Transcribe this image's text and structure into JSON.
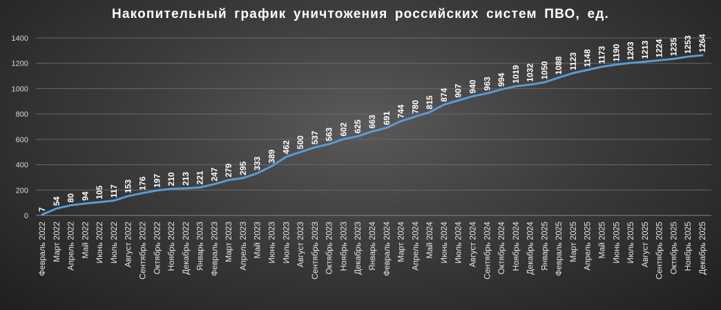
{
  "chart_data": {
    "type": "line",
    "title": "Накопительный график уничтожения российских систем ПВО, ед.",
    "xlabel": "",
    "ylabel": "",
    "ylim": [
      0,
      1400
    ],
    "yticks": [
      "0",
      "200",
      "400",
      "600",
      "800",
      "1000",
      "1200",
      "1400"
    ],
    "grid": true,
    "legend": "none",
    "line_color": "#5b9bd5",
    "categories": [
      "Февраль 2022",
      "Март 2022",
      "Апрель 2022",
      "Май 2022",
      "Июнь 2022",
      "Июль 2022",
      "Август 2022",
      "Сентябрь 2022",
      "Октябрь 2022",
      "Ноябрь 2022",
      "Декабрь 2022",
      "Январь 2023",
      "Февраль 2023",
      "Март 2023",
      "Апрель 2023",
      "Май 2023",
      "Июнь 2023",
      "Июль 2023",
      "Август 2023",
      "Сентябрь 2023",
      "Октябрь 2023",
      "Ноябрь 2023",
      "Декабрь 2023",
      "Январь 2024",
      "Февраль 2024",
      "Март 2024",
      "Апрель 2024",
      "Май 2024",
      "Июнь 2024",
      "Июль 2024",
      "Август 2024",
      "Сентябрь 2024",
      "Октябрь 2024",
      "Ноябрь 2024",
      "Декабрь 2024",
      "Январь 2025",
      "Февраль 2025",
      "Март 2025",
      "Апрель 2025",
      "Май 2025",
      "Июнь 2025",
      "Июль 2025",
      "Август 2025",
      "Сентябрь 2025",
      "Октябрь 2025",
      "Ноябрь 2025",
      "Декабрь 2025"
    ],
    "series": [
      {
        "values": [
          7,
          54,
          80,
          94,
          105,
          117,
          153,
          176,
          197,
          210,
          213,
          221,
          247,
          279,
          295,
          333,
          389,
          462,
          500,
          537,
          563,
          602,
          625,
          663,
          691,
          744,
          780,
          815,
          874,
          907,
          940,
          963,
          994,
          1019,
          1032,
          1050,
          1088,
          1123,
          1148,
          1173,
          1190,
          1203,
          1213,
          1224,
          1235,
          1253,
          1264
        ]
      }
    ]
  }
}
